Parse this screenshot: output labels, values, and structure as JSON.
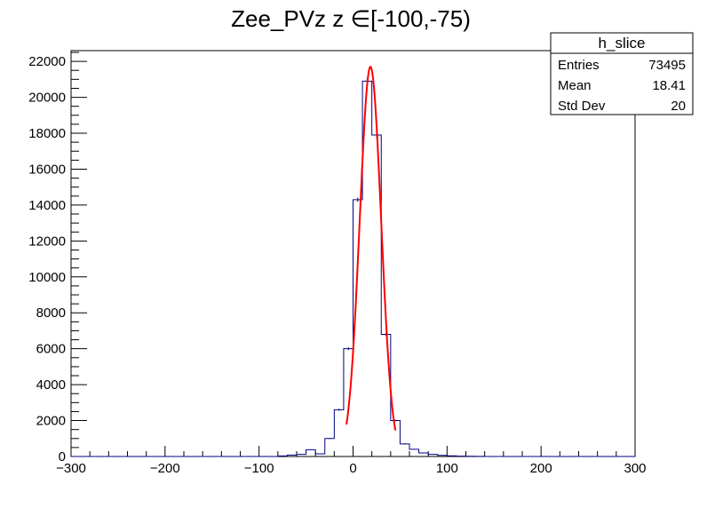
{
  "chart_data": {
    "type": "bar",
    "title": "Zee_PVz z ∈[-100,-75)",
    "xlabel": "",
    "ylabel": "",
    "xlim": [
      -300,
      300
    ],
    "ylim": [
      0,
      22600
    ],
    "grid": false,
    "x_ticks": [
      -300,
      -200,
      -100,
      0,
      100,
      200,
      300
    ],
    "x_tick_labels": [
      "−300",
      "−200",
      "−100",
      "0",
      "100",
      "200",
      "300"
    ],
    "y_ticks": [
      0,
      2000,
      4000,
      6000,
      8000,
      10000,
      12000,
      14000,
      16000,
      18000,
      20000,
      22000
    ],
    "y_tick_labels": [
      "0",
      "2000",
      "4000",
      "6000",
      "8000",
      "10000",
      "12000",
      "14000",
      "16000",
      "18000",
      "20000",
      "22000"
    ],
    "histogram": {
      "name": "h_slice",
      "bin_width": 10,
      "bin_low_edges": [
        -80,
        -70,
        -60,
        -50,
        -40,
        -30,
        -20,
        -10,
        0,
        10,
        20,
        30,
        40,
        50,
        60,
        70,
        80,
        90,
        100,
        110,
        120,
        130
      ],
      "values": [
        30,
        80,
        120,
        380,
        150,
        1000,
        2600,
        6000,
        14300,
        20900,
        17900,
        6800,
        2000,
        700,
        400,
        200,
        120,
        60,
        40,
        20,
        10,
        5
      ],
      "color": "#000080"
    },
    "fit": {
      "type": "gaussian",
      "amplitude": 21700,
      "mean": 18.5,
      "sigma": 11.4,
      "x_range": [
        -7,
        45
      ],
      "color": "#ff0000"
    },
    "stats_box": {
      "name": "h_slice",
      "rows": [
        {
          "label": "Entries",
          "value": "73495"
        },
        {
          "label": "Mean",
          "value": "18.41"
        },
        {
          "label": "Std Dev",
          "value": "20"
        }
      ]
    }
  }
}
